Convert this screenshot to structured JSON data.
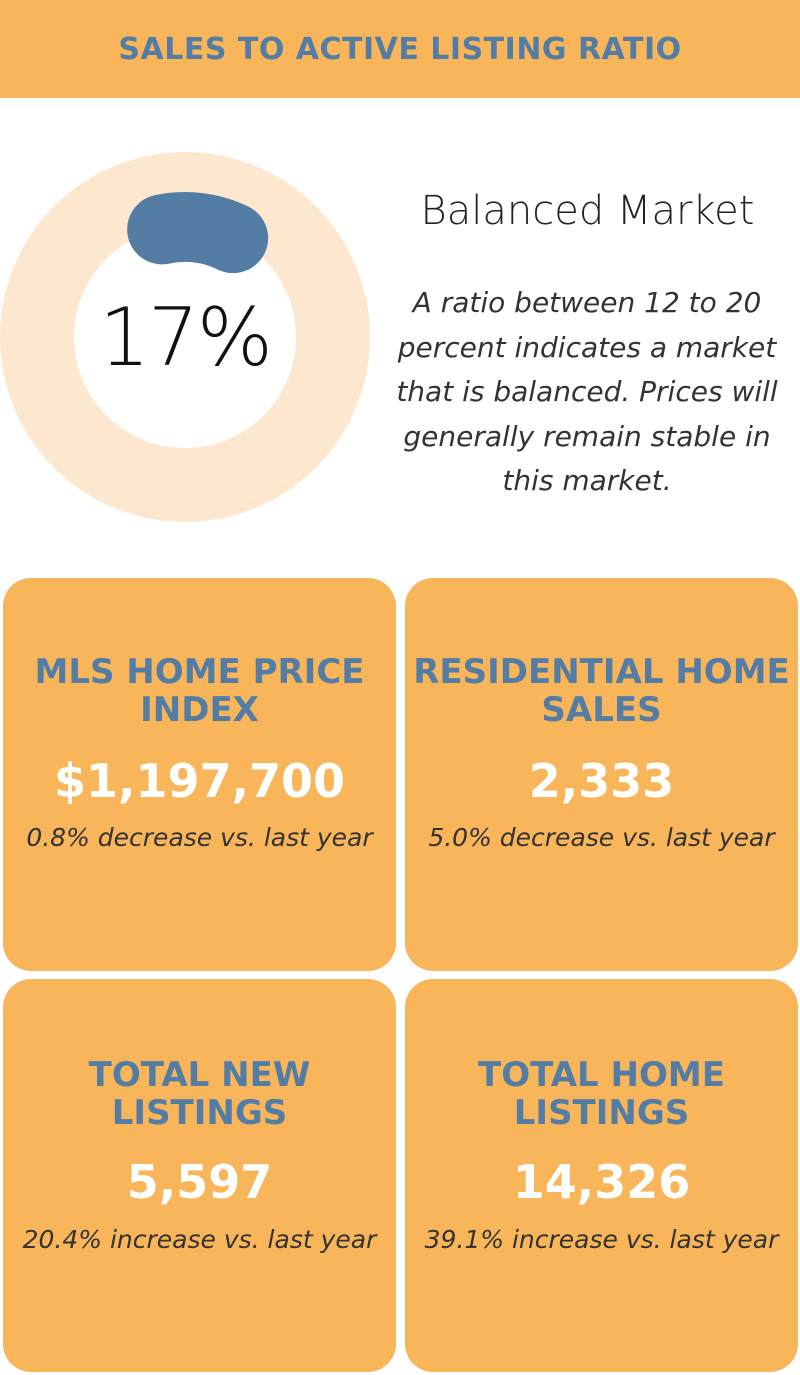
{
  "header": {
    "title": "SALES TO ACTIVE LISTING RATIO"
  },
  "ratio": {
    "value": 17,
    "percent_label": "17%",
    "track_color": "#fde8cf",
    "fill_color": "#547da6"
  },
  "market": {
    "title": "Balanced Market",
    "description": "A ratio between 12 to 20 percent indicates a market that is balanced. Prices will generally remain stable in this market."
  },
  "cards": [
    {
      "title": "MLS HOME PRICE INDEX",
      "value": "$1,197,700",
      "change": "0.8% decrease vs. last year"
    },
    {
      "title": "RESIDENTIAL HOME SALES",
      "value": "2,333",
      "change": "5.0% decrease vs. last year"
    },
    {
      "title": "TOTAL NEW LISTINGS",
      "value": "5,597",
      "change": "20.4% increase vs. last year"
    },
    {
      "title": "TOTAL HOME LISTINGS",
      "value": "14,326",
      "change": "39.1% increase vs. last year"
    }
  ],
  "colors": {
    "accent_orange": "#f8b55a",
    "accent_blue": "#547da6"
  }
}
